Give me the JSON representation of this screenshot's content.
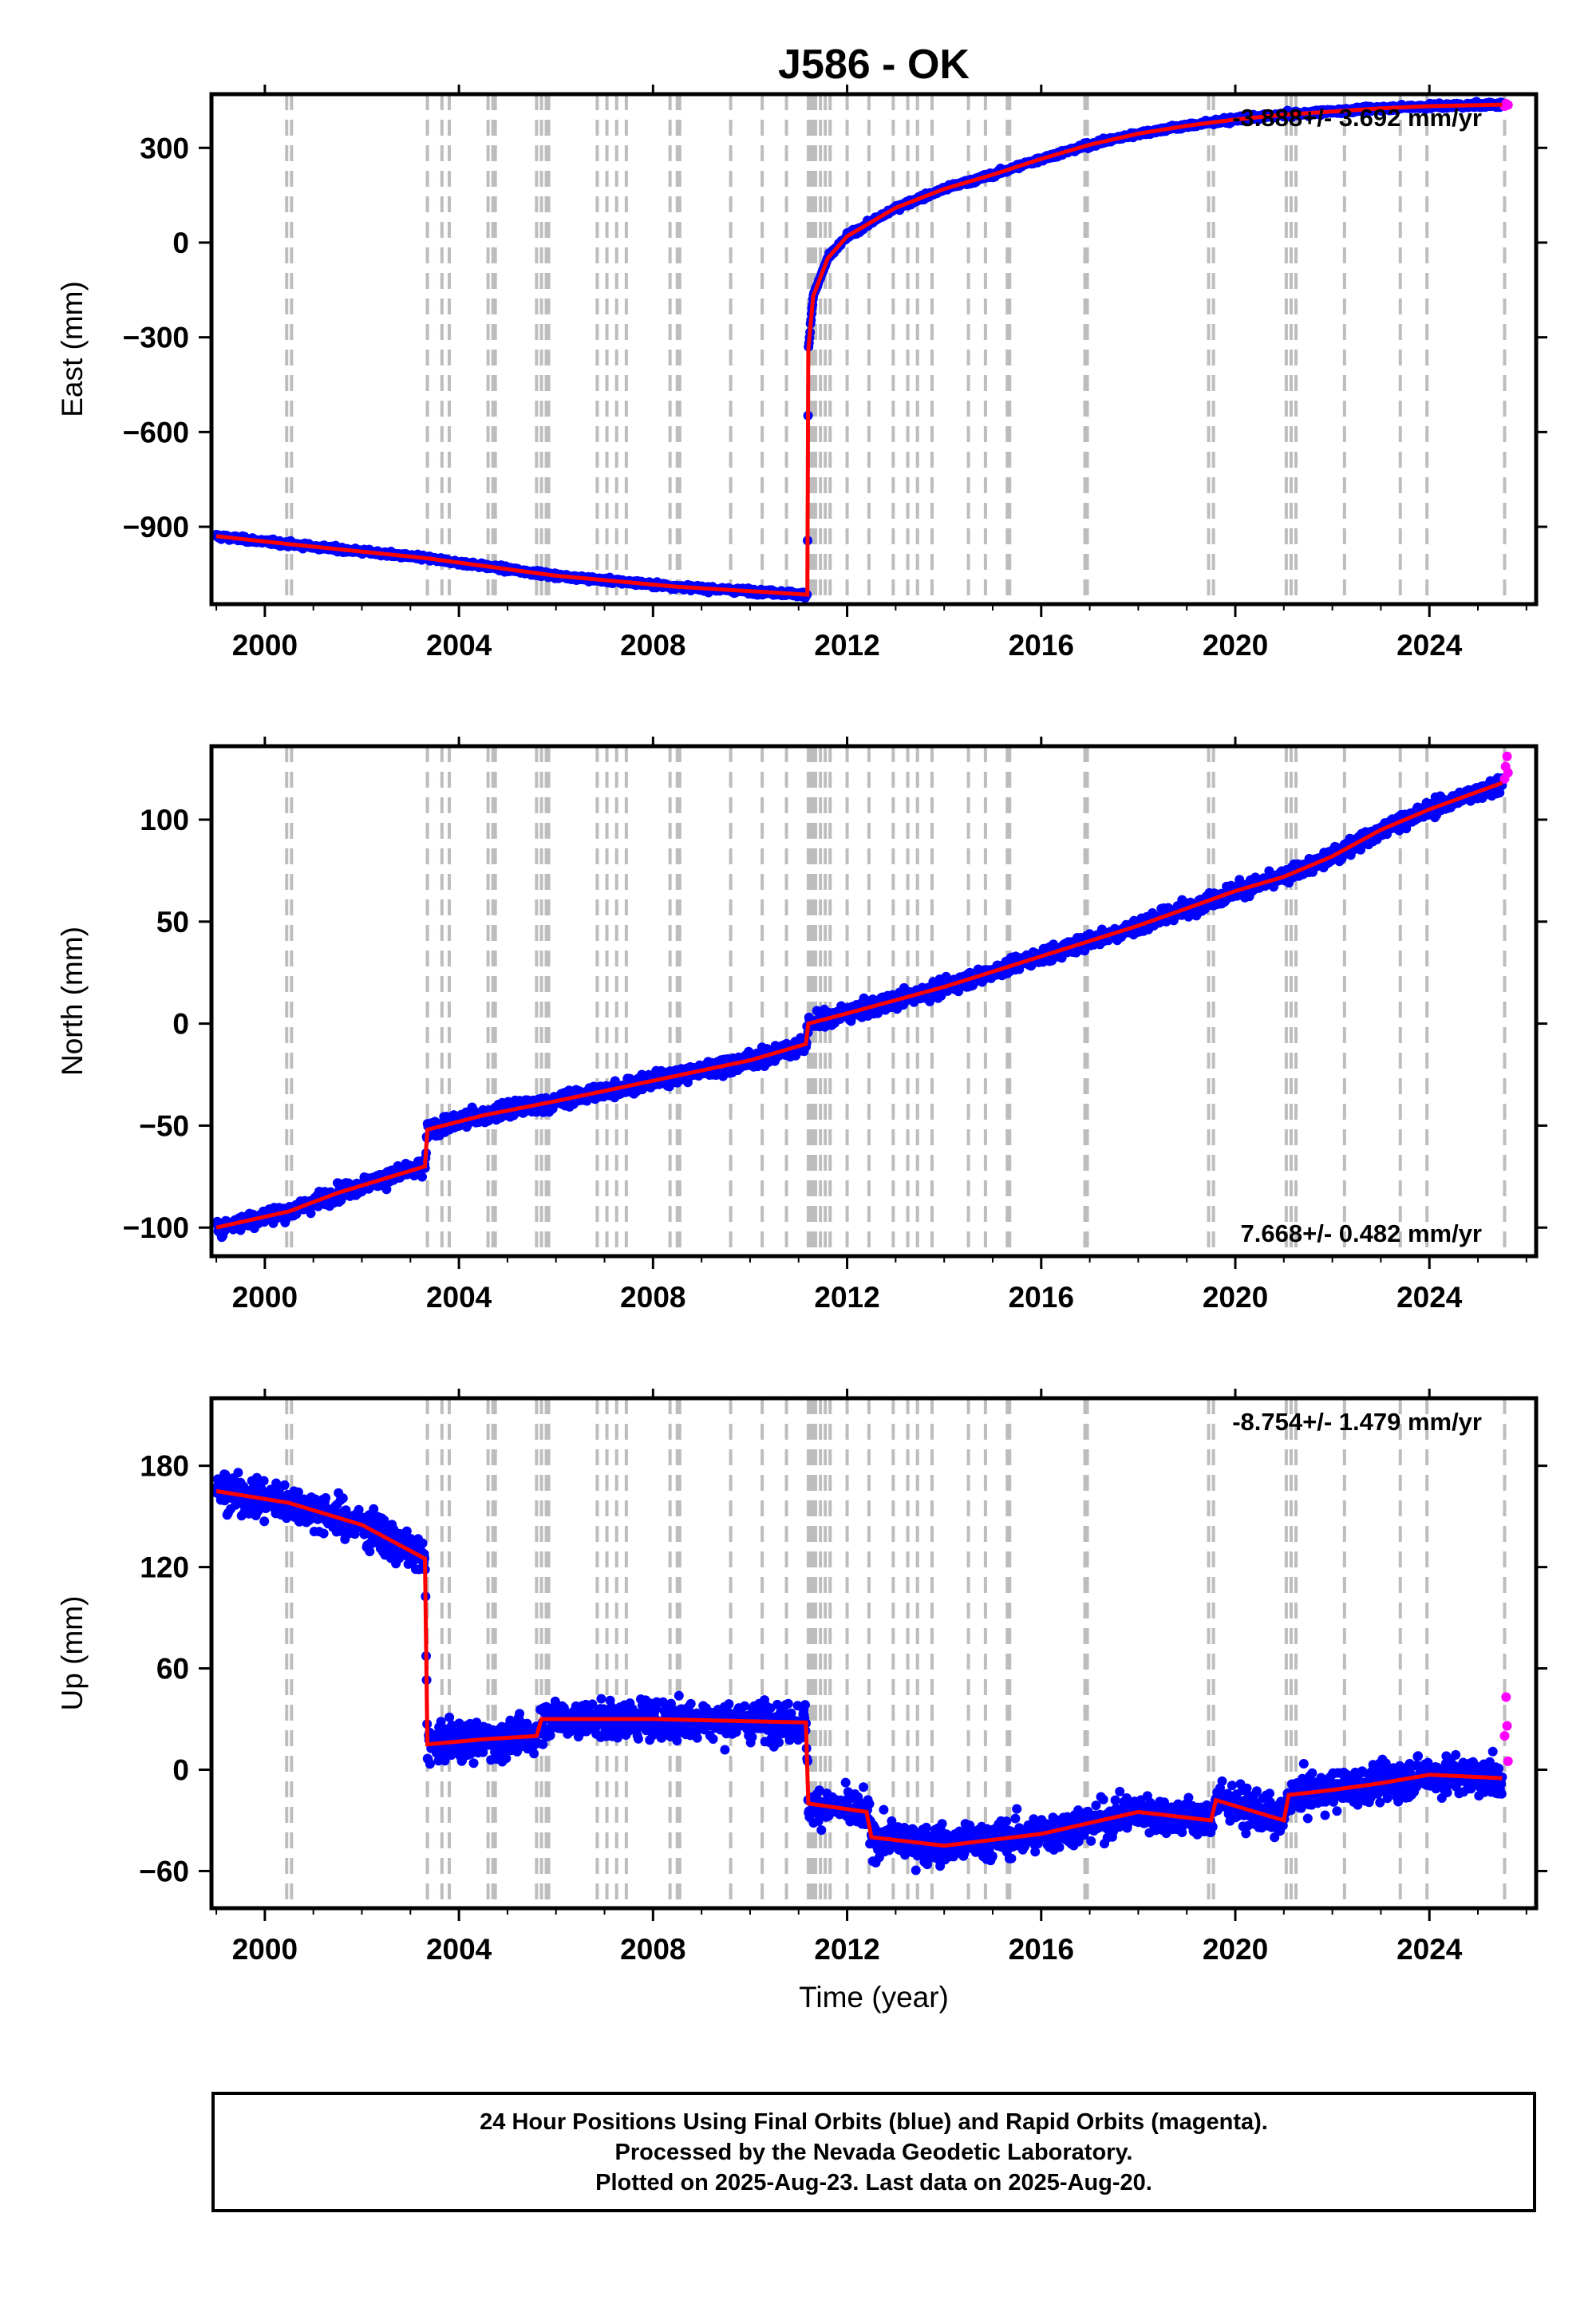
{
  "page": {
    "title": "J586 - OK"
  },
  "colors": {
    "final_orbits": "#0000ff",
    "rapid_orbits": "#ff00ff",
    "model": "#ff0000",
    "event_lines": "#bdbdbd"
  },
  "event_lines_years": [
    2000.45,
    2000.55,
    2003.35,
    2003.65,
    2003.8,
    2004.6,
    2004.7,
    2004.75,
    2005.6,
    2005.7,
    2005.8,
    2005.85,
    2006.85,
    2007.05,
    2007.25,
    2007.45,
    2008.35,
    2008.5,
    2008.55,
    2009.6,
    2010.25,
    2010.75,
    2011.2,
    2011.25,
    2011.3,
    2011.35,
    2011.45,
    2011.55,
    2011.65,
    2012.0,
    2012.45,
    2012.95,
    2013.25,
    2013.45,
    2013.75,
    2014.5,
    2014.85,
    2015.3,
    2015.35,
    2016.9,
    2016.95,
    2019.45,
    2019.55,
    2021.05,
    2021.15,
    2021.25,
    2022.25,
    2023.4,
    2023.95,
    2025.55
  ],
  "chart_data": [
    {
      "type": "scatter",
      "name": "east",
      "ylabel": "East (mm)",
      "xlabel": "",
      "xlim": [
        1998.9,
        2026.2
      ],
      "ylim": [
        -1145,
        470
      ],
      "xticks": [
        2000,
        2004,
        2008,
        2012,
        2016,
        2020,
        2024
      ],
      "xtick_labels": [
        "2000",
        "2004",
        "2008",
        "2012",
        "2016",
        "2020",
        "2024"
      ],
      "yticks": [
        300,
        0,
        -300,
        -600,
        -900
      ],
      "ytick_labels": [
        "300",
        "0",
        "−300",
        "−600",
        "−900"
      ],
      "rate_text": "-3.888+/- 3.692 mm/yr",
      "rate_position": "top-right",
      "offsets": [
        [
          2000.5,
          0
        ],
        [
          2003.35,
          0
        ],
        [
          2011.19,
          0
        ]
      ],
      "series": [
        {
          "role": "final",
          "trend": [
            [
              1999.0,
              -930
            ],
            [
              2000.5,
              -955
            ],
            [
              2003.35,
              -1000
            ],
            [
              2006.0,
              -1055
            ],
            [
              2008.5,
              -1090
            ],
            [
              2011.18,
              -1115
            ],
            [
              2011.2,
              -340
            ],
            [
              2011.3,
              -170
            ],
            [
              2011.6,
              -50
            ],
            [
              2012.0,
              20
            ],
            [
              2013.0,
              110
            ],
            [
              2014.0,
              170
            ],
            [
              2015.0,
              215
            ],
            [
              2016.0,
              265
            ],
            [
              2017.0,
              310
            ],
            [
              2018.0,
              345
            ],
            [
              2019.0,
              370
            ],
            [
              2020.0,
              390
            ],
            [
              2021.0,
              405
            ],
            [
              2022.0,
              415
            ],
            [
              2023.0,
              425
            ],
            [
              2024.0,
              432
            ],
            [
              2025.5,
              437
            ]
          ],
          "scatter_mm": 10
        },
        {
          "role": "rapid",
          "points": [
            [
              2025.55,
              432
            ],
            [
              2025.58,
              440
            ],
            [
              2025.62,
              436
            ]
          ]
        }
      ]
    },
    {
      "type": "scatter",
      "name": "north",
      "ylabel": "North (mm)",
      "xlabel": "",
      "xlim": [
        1998.9,
        2026.2
      ],
      "ylim": [
        -114,
        136
      ],
      "xticks": [
        2000,
        2004,
        2008,
        2012,
        2016,
        2020,
        2024
      ],
      "xtick_labels": [
        "2000",
        "2004",
        "2008",
        "2012",
        "2016",
        "2020",
        "2024"
      ],
      "yticks": [
        100,
        50,
        0,
        -50,
        -100
      ],
      "ytick_labels": [
        "100",
        "50",
        "0",
        "−50",
        "−100"
      ],
      "rate_text": "7.668+/- 0.482 mm/yr",
      "rate_position": "bottom-right",
      "series": [
        {
          "role": "final",
          "trend": [
            [
              1999.0,
              -100
            ],
            [
              2000.5,
              -92
            ],
            [
              2001.5,
              -83
            ],
            [
              2003.3,
              -70
            ],
            [
              2003.35,
              -52
            ],
            [
              2004.5,
              -45
            ],
            [
              2006.0,
              -38
            ],
            [
              2008.0,
              -28
            ],
            [
              2010.0,
              -18
            ],
            [
              2011.15,
              -10
            ],
            [
              2011.2,
              0
            ],
            [
              2012.0,
              5
            ],
            [
              2014.0,
              18
            ],
            [
              2016.0,
              33
            ],
            [
              2018.0,
              48
            ],
            [
              2020.0,
              65
            ],
            [
              2021.0,
              72
            ],
            [
              2022.0,
              82
            ],
            [
              2023.0,
              95
            ],
            [
              2024.0,
              105
            ],
            [
              2025.5,
              118
            ]
          ],
          "scatter_mm": 5
        },
        {
          "role": "rapid",
          "points": [
            [
              2025.55,
              120
            ],
            [
              2025.57,
              126
            ],
            [
              2025.6,
              131
            ],
            [
              2025.62,
              123
            ]
          ]
        }
      ]
    },
    {
      "type": "scatter",
      "name": "up",
      "ylabel": "Up (mm)",
      "xlabel": "Time (year)",
      "xlim": [
        1998.9,
        2026.2
      ],
      "ylim": [
        -82,
        220
      ],
      "xticks": [
        2000,
        2004,
        2008,
        2012,
        2016,
        2020,
        2024
      ],
      "xtick_labels": [
        "2000",
        "2004",
        "2008",
        "2012",
        "2016",
        "2020",
        "2024"
      ],
      "yticks": [
        180,
        120,
        60,
        0,
        -60
      ],
      "ytick_labels": [
        "180",
        "120",
        "60",
        "0",
        "−60"
      ],
      "rate_text": "-8.754+/- 1.479 mm/yr",
      "rate_position": "top-right",
      "series": [
        {
          "role": "final",
          "trend": [
            [
              1999.0,
              165
            ],
            [
              2000.5,
              158
            ],
            [
              2002.0,
              145
            ],
            [
              2003.3,
              125
            ],
            [
              2003.35,
              15
            ],
            [
              2004.5,
              18
            ],
            [
              2005.6,
              20
            ],
            [
              2005.7,
              30
            ],
            [
              2008.0,
              30
            ],
            [
              2011.15,
              28
            ],
            [
              2011.2,
              -20
            ],
            [
              2012.4,
              -25
            ],
            [
              2012.5,
              -40
            ],
            [
              2014.0,
              -45
            ],
            [
              2016.0,
              -38
            ],
            [
              2018.0,
              -25
            ],
            [
              2019.5,
              -30
            ],
            [
              2019.6,
              -18
            ],
            [
              2021.0,
              -30
            ],
            [
              2021.1,
              -15
            ],
            [
              2022.0,
              -12
            ],
            [
              2023.0,
              -8
            ],
            [
              2024.0,
              -3
            ],
            [
              2025.5,
              -5
            ]
          ],
          "scatter_mm": 14
        },
        {
          "role": "rapid",
          "points": [
            [
              2025.55,
              20
            ],
            [
              2025.58,
              43
            ],
            [
              2025.6,
              26
            ],
            [
              2025.62,
              5
            ]
          ]
        }
      ]
    }
  ],
  "footer": {
    "line1": "24 Hour Positions Using Final Orbits (blue) and Rapid Orbits (magenta).",
    "line2": "Processed by the Nevada Geodetic Laboratory.",
    "line3": "Plotted on 2025-Aug-23. Last data on 2025-Aug-20."
  }
}
